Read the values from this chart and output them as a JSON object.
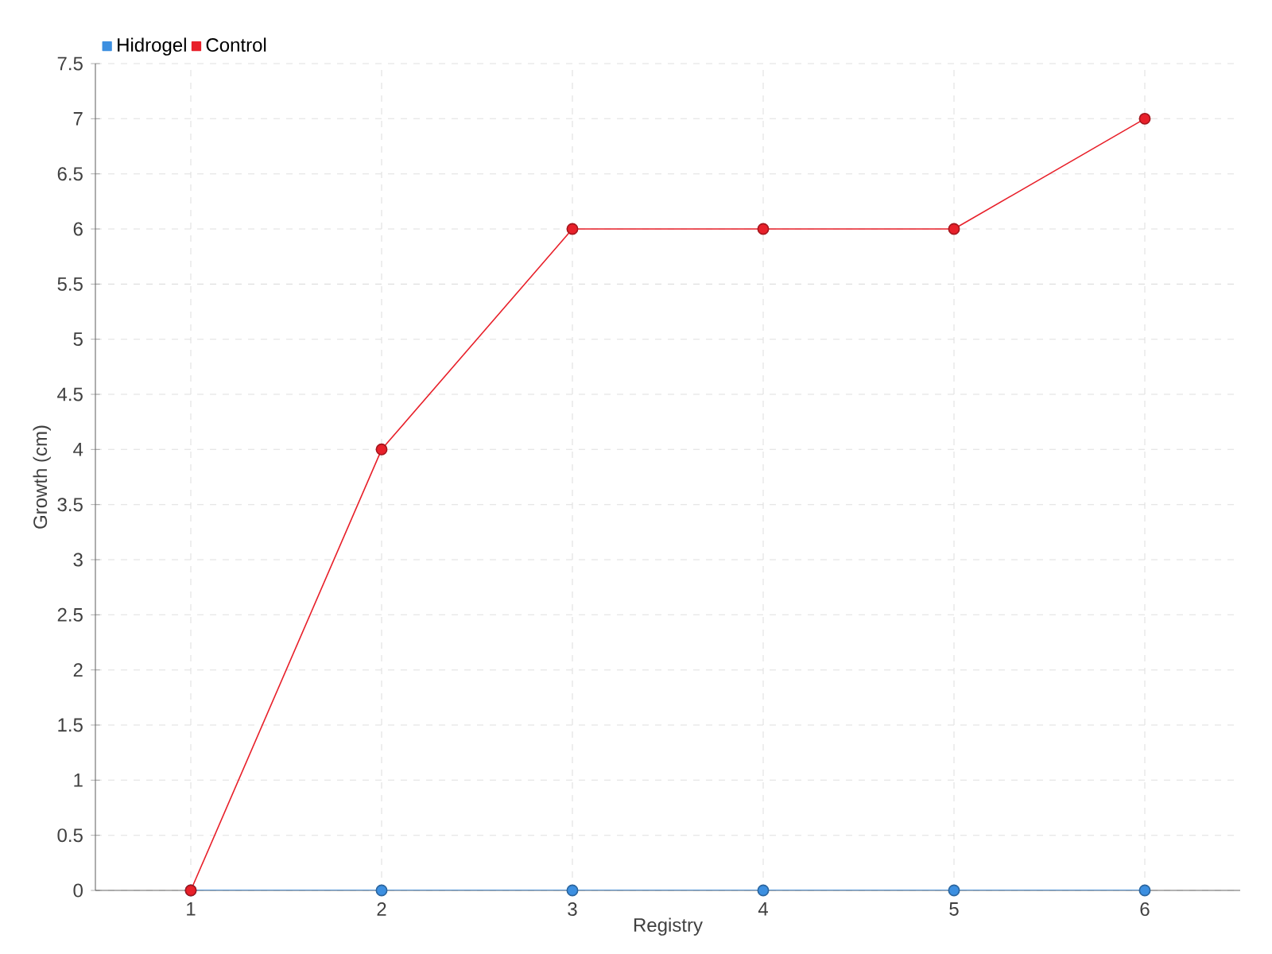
{
  "chart_data": {
    "type": "line",
    "xlabel": "Registry",
    "ylabel": "Growth (cm)",
    "categories": [
      "1",
      "2",
      "3",
      "4",
      "5",
      "6"
    ],
    "series": [
      {
        "name": "Hidrogel",
        "color": "#3c8fe0",
        "values": [
          0,
          0,
          0,
          0,
          0,
          0
        ]
      },
      {
        "name": "Control",
        "color": "#e8202a",
        "values": [
          0,
          4,
          6,
          6,
          6,
          7
        ]
      }
    ],
    "ylim": [
      0,
      7.5
    ],
    "yticks": [
      0,
      0.5,
      1,
      1.5,
      2,
      2.5,
      3,
      3.5,
      4,
      4.5,
      5,
      5.5,
      6,
      6.5,
      7,
      7.5
    ],
    "grid": true,
    "legend": "top left",
    "marker": "circle",
    "line_style": "solid"
  }
}
